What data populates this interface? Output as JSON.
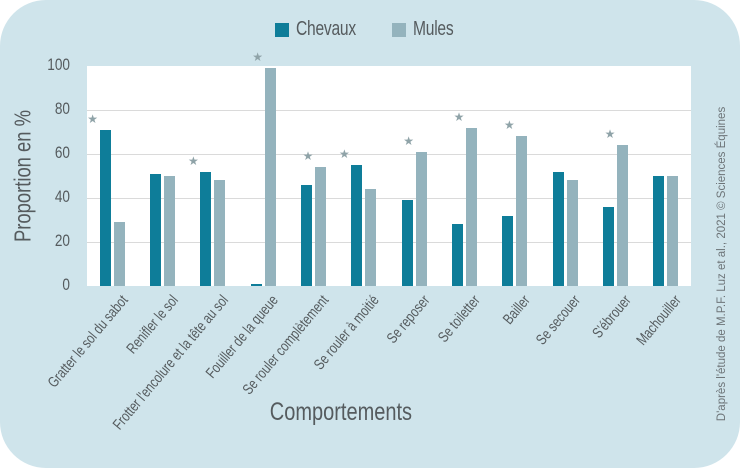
{
  "chart_data": {
    "type": "bar",
    "title": "",
    "xlabel": "Comportements",
    "ylabel": "Proportion en %",
    "ylim": [
      0,
      100
    ],
    "yticks": [
      0,
      20,
      40,
      60,
      80,
      100
    ],
    "grid": true,
    "legend_position": "top",
    "categories": [
      "Gratter le sol du sabot",
      "Renifler le sol",
      "Frotter l'encolure et la tête au sol",
      "Fouiller de la queue",
      "Se rouler complètement",
      "Se rouler à moitié",
      "Se reposer",
      "Se toiletter",
      "Bailler",
      "Se secouer",
      "S'ébrouer",
      "Machouiller"
    ],
    "series": [
      {
        "name": "Chevaux",
        "color": "#0e7d99",
        "values": [
          71,
          51,
          52,
          1,
          46,
          55,
          39,
          28,
          32,
          52,
          36,
          50
        ]
      },
      {
        "name": "Mules",
        "color": "#94b3bd",
        "values": [
          29,
          50,
          48,
          99,
          54,
          44,
          61,
          72,
          68,
          48,
          64,
          50
        ]
      }
    ],
    "significant": [
      true,
      false,
      true,
      true,
      true,
      true,
      true,
      true,
      true,
      false,
      true,
      false
    ],
    "annotation_marker": "★",
    "credit": "D'après l'étude de M.P.F. Luz et al., 2021 © Sciences Équines"
  },
  "legend": {
    "items": [
      {
        "label": "Chevaux",
        "color": "#0e7d99"
      },
      {
        "label": "Mules",
        "color": "#94b3bd"
      }
    ]
  },
  "colors": {
    "background": "#cfe4eb",
    "plot": "#ffffff",
    "star": "#8fa3a8",
    "text": "#555b5e"
  }
}
